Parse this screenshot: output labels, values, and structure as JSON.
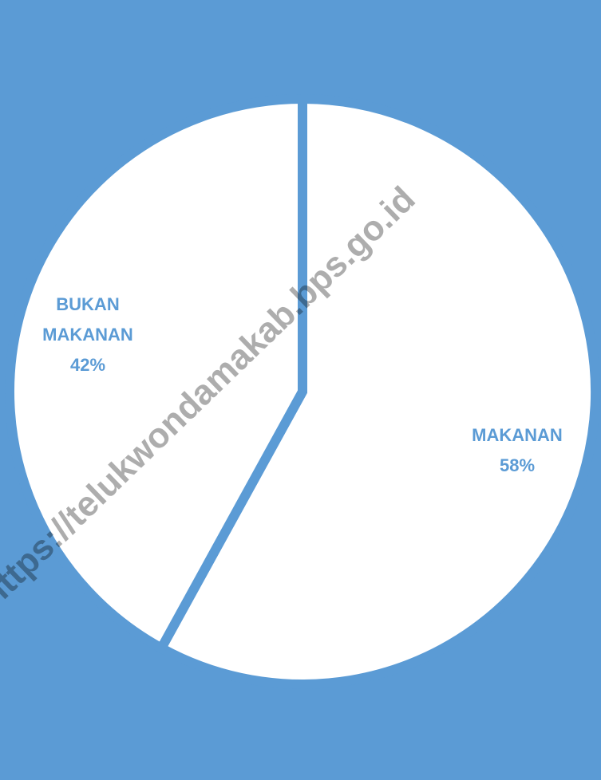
{
  "chart_data": {
    "type": "pie",
    "categories": [
      "MAKANAN",
      "BUKAN MAKANAN"
    ],
    "values": [
      58,
      42
    ],
    "value_labels": [
      "58%",
      "42%"
    ],
    "colors": [
      "#ffffff",
      "#ffffff"
    ],
    "background": "#5b9bd5",
    "watermark": "https://telukwondamakab.bps.go.id"
  }
}
